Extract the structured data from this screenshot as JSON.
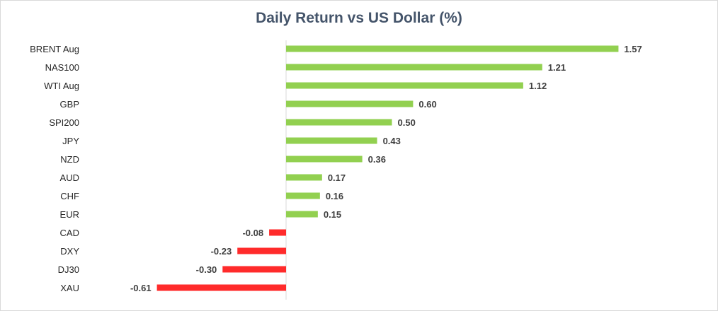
{
  "chart_data": {
    "type": "bar",
    "orientation": "horizontal",
    "title": "Daily Return vs US Dollar (%)",
    "categories": [
      "BRENT Aug",
      "NAS100",
      "WTI Aug",
      "GBP",
      "SPI200",
      "JPY",
      "NZD",
      "AUD",
      "CHF",
      "EUR",
      "CAD",
      "DXY",
      "DJ30",
      "XAU"
    ],
    "values": [
      1.57,
      1.21,
      1.12,
      0.6,
      0.5,
      0.43,
      0.36,
      0.17,
      0.16,
      0.15,
      -0.08,
      -0.23,
      -0.3,
      -0.61
    ],
    "value_labels": [
      "1.57",
      "1.21",
      "1.12",
      "0.60",
      "0.50",
      "0.43",
      "0.36",
      "0.17",
      "0.16",
      "0.15",
      "-0.08",
      "-0.23",
      "-0.30",
      "-0.61"
    ],
    "xlabel": "",
    "ylabel": "",
    "xlim": [
      -0.61,
      1.57
    ],
    "grid": false,
    "legend": "none",
    "colors": {
      "positive": "#92d050",
      "negative": "#ff2b2b",
      "axis": "#d9d9d9"
    }
  }
}
